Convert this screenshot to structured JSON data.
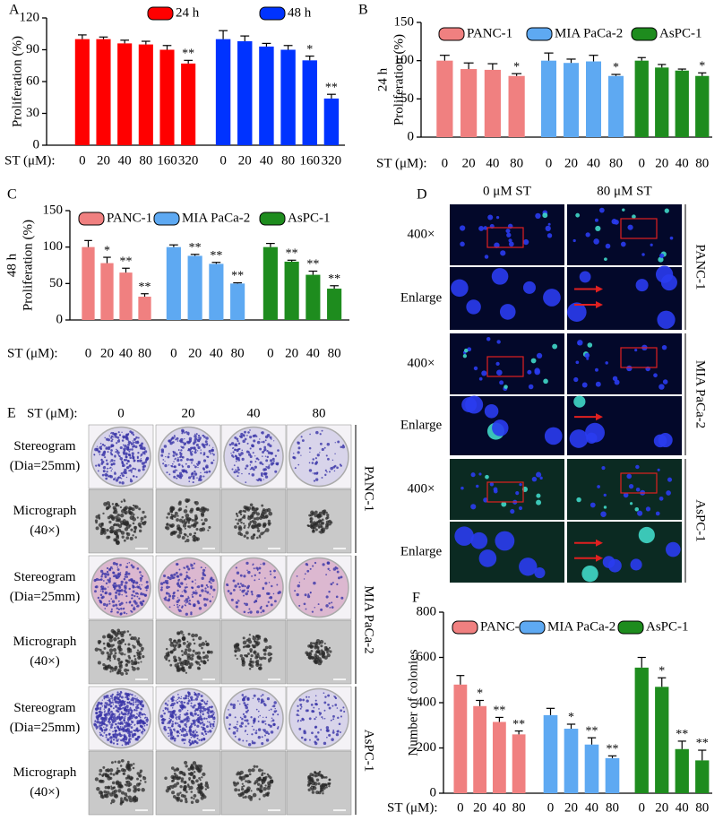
{
  "figure": {
    "panel_d": {
      "panel": "D",
      "columns": [
        "0 μM ST",
        "80 μM ST"
      ],
      "row_labels": [
        "400×",
        "Enlarge",
        "400×",
        "Enlarge",
        "400×",
        "Enlarge"
      ],
      "cell_lines": [
        "PANC-1",
        "MIA PaCa-2",
        "AsPC-1"
      ]
    },
    "panel_e": {
      "panel": "E",
      "x_label": "ST (μM):",
      "columns": [
        "0",
        "20",
        "40",
        "80"
      ],
      "row_labels": [
        [
          "Stereogram",
          "(Dia=25mm)"
        ],
        [
          "Micrograph",
          "(40×)"
        ],
        [
          "Stereogram",
          "(Dia=25mm)"
        ],
        [
          "Micrograph",
          "(40×)"
        ],
        [
          "Stereogram",
          "(Dia=25mm)"
        ],
        [
          "Micrograph",
          "(40×)"
        ]
      ],
      "cell_lines": [
        "PANC-1",
        "MIA PaCa-2",
        "AsPC-1"
      ]
    }
  },
  "chart_data": [
    {
      "type": "bar",
      "panel": "A",
      "y_label": [
        "Proliferation (%)"
      ],
      "x_label": "ST (μM):",
      "ylim": [
        0,
        120
      ],
      "yticks": [
        0,
        30,
        60,
        90,
        120
      ],
      "series": [
        {
          "name": "24 h",
          "color": "#ff0000",
          "categories": [
            "0",
            "20",
            "40",
            "80",
            "160",
            "320"
          ],
          "values": [
            100,
            100,
            96,
            95,
            90,
            77
          ],
          "errors": [
            4,
            2,
            3,
            3,
            4,
            3
          ],
          "significance": [
            null,
            null,
            null,
            null,
            null,
            "**"
          ]
        },
        {
          "name": "48 h",
          "color": "#0033ff",
          "categories": [
            "0",
            "20",
            "40",
            "80",
            "160",
            "320"
          ],
          "values": [
            100,
            98,
            93,
            90,
            80,
            44
          ],
          "errors": [
            8,
            5,
            3,
            4,
            4,
            4
          ],
          "significance": [
            null,
            null,
            null,
            null,
            "*",
            "**"
          ]
        }
      ]
    },
    {
      "type": "bar",
      "panel": "B",
      "y_label": [
        "24 h",
        "Proliferation (%)"
      ],
      "x_label": "ST (μM):",
      "ylim": [
        0,
        150
      ],
      "yticks": [
        0,
        50,
        100,
        150
      ],
      "series": [
        {
          "name": "PANC-1",
          "color": "#f08080",
          "categories": [
            "0",
            "20",
            "40",
            "80"
          ],
          "values": [
            100,
            89,
            88,
            80
          ],
          "errors": [
            7,
            8,
            8,
            3
          ],
          "significance": [
            null,
            null,
            null,
            "*"
          ]
        },
        {
          "name": "MIA PaCa-2",
          "color": "#5ea9f2",
          "categories": [
            "0",
            "20",
            "40",
            "80"
          ],
          "values": [
            100,
            97,
            99,
            80
          ],
          "errors": [
            10,
            5,
            8,
            2
          ],
          "significance": [
            null,
            null,
            null,
            "*"
          ]
        },
        {
          "name": "AsPC-1",
          "color": "#1e8c1e",
          "categories": [
            "0",
            "20",
            "40",
            "80"
          ],
          "values": [
            100,
            91,
            87,
            80
          ],
          "errors": [
            4,
            4,
            2,
            4
          ],
          "significance": [
            null,
            null,
            null,
            "*"
          ]
        }
      ]
    },
    {
      "type": "bar",
      "panel": "C",
      "y_label": [
        "48 h",
        "Proliferation (%)"
      ],
      "x_label": "ST (μM):",
      "ylim": [
        0,
        150
      ],
      "yticks": [
        0,
        50,
        100,
        150
      ],
      "series": [
        {
          "name": "PANC-1",
          "color": "#f08080",
          "categories": [
            "0",
            "20",
            "40",
            "80"
          ],
          "values": [
            100,
            78,
            65,
            32
          ],
          "errors": [
            9,
            8,
            6,
            4
          ],
          "significance": [
            null,
            "*",
            "**",
            "**"
          ]
        },
        {
          "name": "MIA PaCa-2",
          "color": "#5ea9f2",
          "categories": [
            "0",
            "20",
            "40",
            "80"
          ],
          "values": [
            100,
            88,
            77,
            50
          ],
          "errors": [
            3,
            2,
            2,
            1
          ],
          "significance": [
            null,
            "**",
            "**",
            "**"
          ]
        },
        {
          "name": "AsPC-1",
          "color": "#1e8c1e",
          "categories": [
            "0",
            "20",
            "40",
            "80"
          ],
          "values": [
            100,
            80,
            62,
            43
          ],
          "errors": [
            5,
            2,
            5,
            4
          ],
          "significance": [
            null,
            "**",
            "**",
            "**"
          ]
        }
      ]
    },
    {
      "type": "bar",
      "panel": "F",
      "y_label": [
        "Number of colonies"
      ],
      "x_label": "ST (μM):",
      "ylim": [
        0,
        800
      ],
      "yticks": [
        0,
        200,
        400,
        600,
        800
      ],
      "series": [
        {
          "name": "PANC-1",
          "color": "#f08080",
          "categories": [
            "0",
            "20",
            "40",
            "80"
          ],
          "values": [
            480,
            385,
            315,
            260
          ],
          "errors": [
            40,
            25,
            20,
            15
          ],
          "significance": [
            null,
            "*",
            "**",
            "**"
          ]
        },
        {
          "name": "MIA PaCa-2",
          "color": "#5ea9f2",
          "categories": [
            "0",
            "20",
            "40",
            "80"
          ],
          "values": [
            345,
            285,
            215,
            155
          ],
          "errors": [
            30,
            20,
            30,
            10
          ],
          "significance": [
            null,
            "*",
            "**",
            "**"
          ]
        },
        {
          "name": "AsPC-1",
          "color": "#1e8c1e",
          "categories": [
            "0",
            "20",
            "40",
            "80"
          ],
          "values": [
            555,
            470,
            195,
            145
          ],
          "errors": [
            45,
            40,
            35,
            45
          ],
          "significance": [
            null,
            "*",
            "**",
            "**"
          ]
        }
      ]
    }
  ]
}
